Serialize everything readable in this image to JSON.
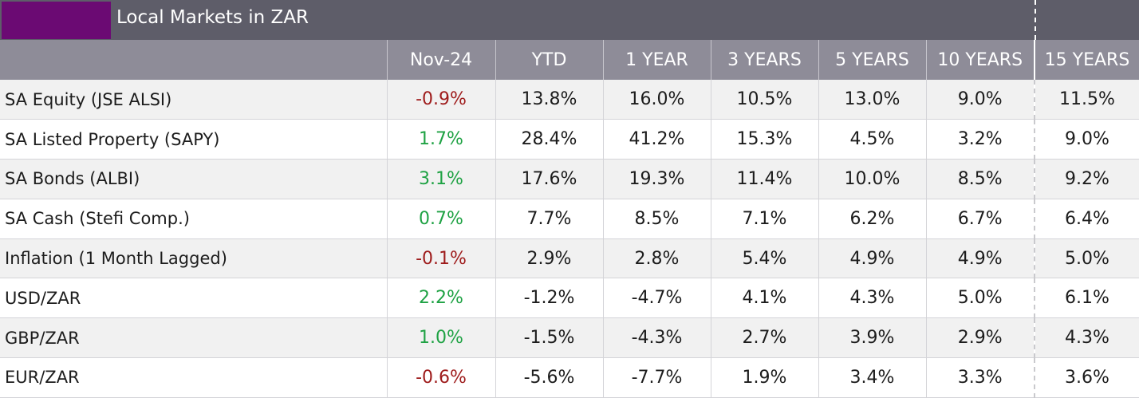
{
  "title": "Local Markets in ZAR",
  "colors": {
    "title_bar": "#5e5d69",
    "accent": "#6b0a73",
    "header_bar": "#8e8c98",
    "negative": "#9e1b1b",
    "positive": "#1fa244"
  },
  "columns": [
    "",
    "Nov-24",
    "YTD",
    "1 YEAR",
    "3 YEARS",
    "5 YEARS",
    "10 YEARS",
    "15 YEARS"
  ],
  "rows": [
    {
      "label": "SA Equity (JSE ALSI)",
      "values": [
        "-0.9%",
        "13.8%",
        "16.0%",
        "10.5%",
        "13.0%",
        "9.0%",
        "11.5%"
      ],
      "month_sign": "negative"
    },
    {
      "label": "SA Listed Property (SAPY)",
      "values": [
        "1.7%",
        "28.4%",
        "41.2%",
        "15.3%",
        "4.5%",
        "3.2%",
        "9.0%"
      ],
      "month_sign": "positive"
    },
    {
      "label": "SA Bonds (ALBI)",
      "values": [
        "3.1%",
        "17.6%",
        "19.3%",
        "11.4%",
        "10.0%",
        "8.5%",
        "9.2%"
      ],
      "month_sign": "positive"
    },
    {
      "label": "SA Cash (Stefi Comp.)",
      "values": [
        "0.7%",
        "7.7%",
        "8.5%",
        "7.1%",
        "6.2%",
        "6.7%",
        "6.4%"
      ],
      "month_sign": "positive"
    },
    {
      "label": "Inflation (1 Month Lagged)",
      "values": [
        "-0.1%",
        "2.9%",
        "2.8%",
        "5.4%",
        "4.9%",
        "4.9%",
        "5.0%"
      ],
      "month_sign": "negative"
    },
    {
      "label": "USD/ZAR",
      "values": [
        "2.2%",
        "-1.2%",
        "-4.7%",
        "4.1%",
        "4.3%",
        "5.0%",
        "6.1%"
      ],
      "month_sign": "positive"
    },
    {
      "label": "GBP/ZAR",
      "values": [
        "1.0%",
        "-1.5%",
        "-4.3%",
        "2.7%",
        "3.9%",
        "2.9%",
        "4.3%"
      ],
      "month_sign": "positive"
    },
    {
      "label": "EUR/ZAR",
      "values": [
        "-0.6%",
        "-5.6%",
        "-7.7%",
        "1.9%",
        "3.4%",
        "3.3%",
        "3.6%"
      ],
      "month_sign": "negative"
    }
  ]
}
